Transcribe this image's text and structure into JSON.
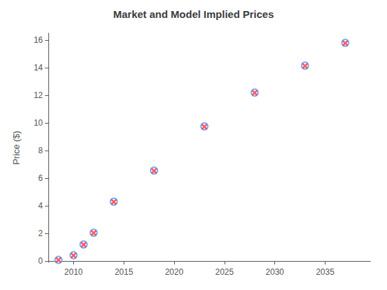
{
  "chart_data": {
    "type": "scatter",
    "title": "Market and Model Implied Prices",
    "ylabel": "Price ($)",
    "xlim": [
      2007.5,
      2039.5
    ],
    "ylim": [
      -0.1,
      16.5
    ],
    "xticks": [
      2010,
      2015,
      2020,
      2025,
      2030,
      2035
    ],
    "yticks": [
      0,
      2,
      4,
      6,
      8,
      10,
      12,
      14,
      16
    ],
    "grid": false,
    "x": [
      2008.5,
      2010,
      2011,
      2012,
      2014,
      2018,
      2023,
      2028,
      2033,
      2037
    ],
    "series": [
      {
        "color": "#5599FF",
        "marker": "circle",
        "values": [
          0.08,
          0.42,
          1.2,
          2.05,
          4.3,
          6.55,
          9.75,
          12.2,
          14.15,
          15.8
        ]
      },
      {
        "color": "#FF3333",
        "marker": "x",
        "values": [
          0.07,
          0.4,
          1.18,
          2.03,
          4.28,
          6.52,
          9.72,
          12.18,
          14.12,
          15.77
        ]
      }
    ]
  }
}
